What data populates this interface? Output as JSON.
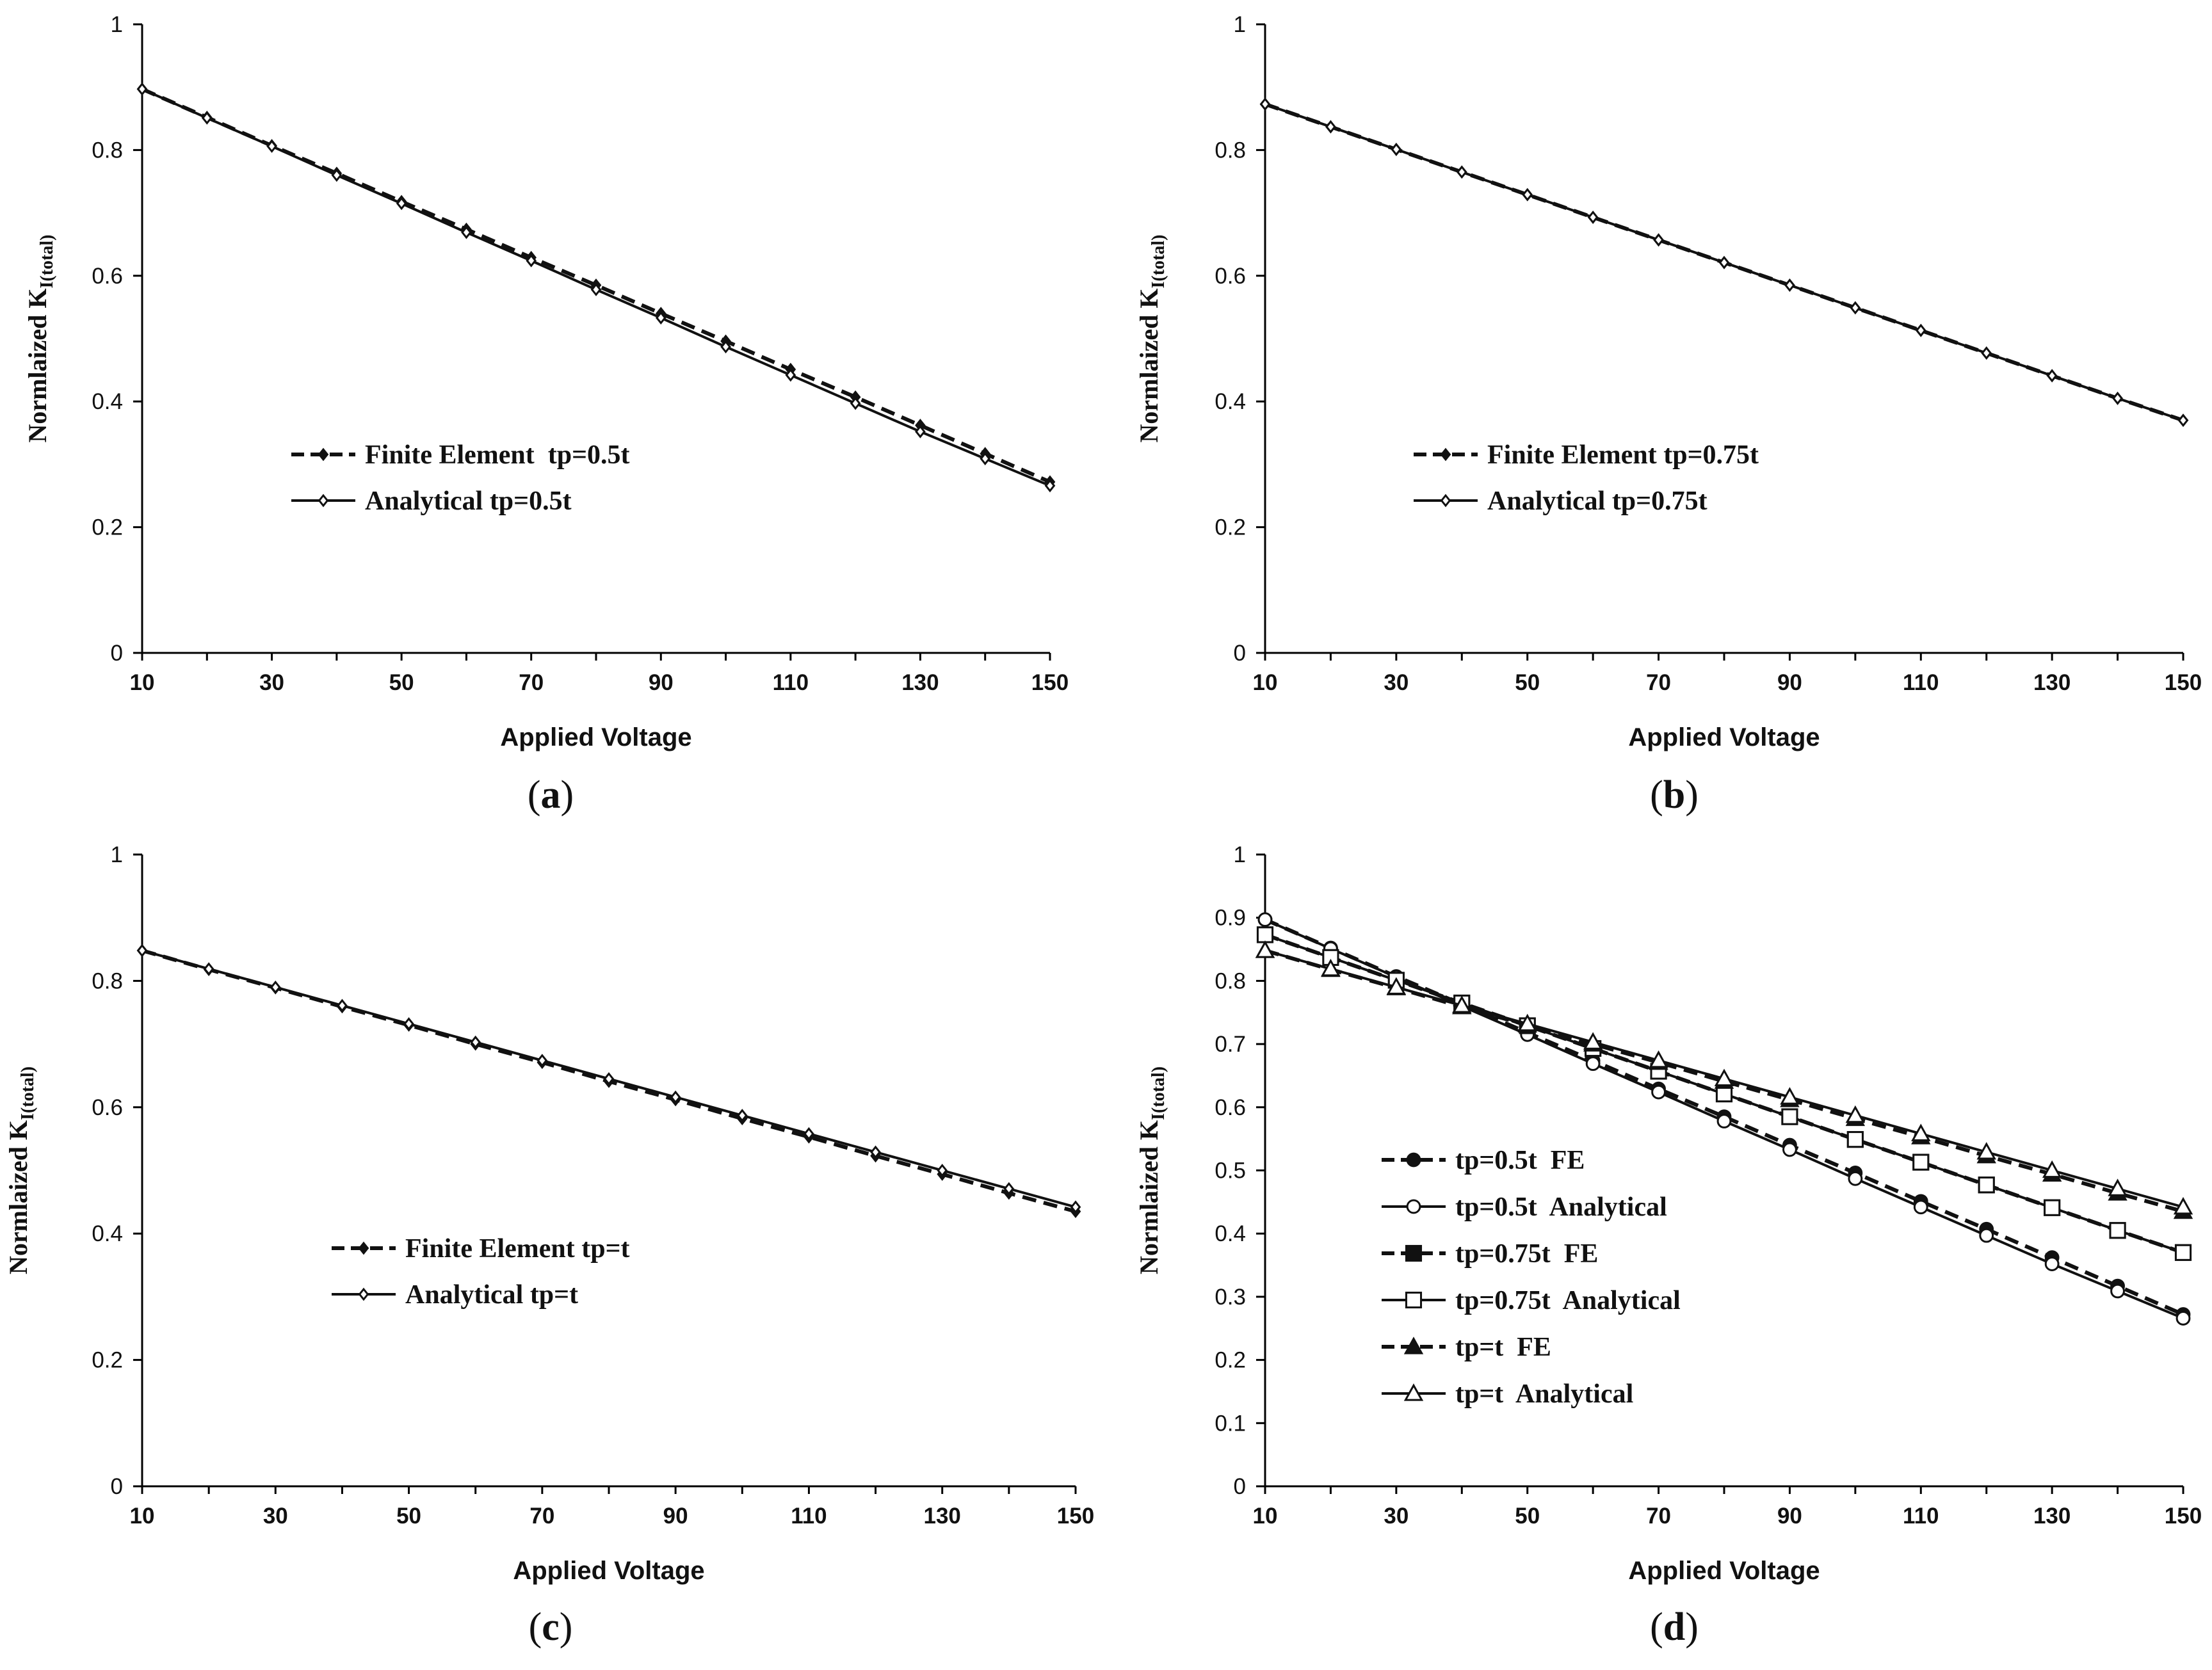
{
  "chart_data": [
    {
      "type": "line",
      "panel_label": "a",
      "xlabel": "Applied Voltage",
      "ylabel_main": "Normlaized  K",
      "ylabel_sub": "I(total)",
      "xlim": [
        10,
        150
      ],
      "ylim": [
        0,
        1
      ],
      "xticks": [
        10,
        30,
        50,
        70,
        90,
        110,
        130,
        150
      ],
      "yticks": [
        0,
        0.2,
        0.4,
        0.6,
        0.8,
        1
      ],
      "ytick_labels": [
        "0",
        "0.2",
        "0.4",
        "0.6",
        "0.8",
        "1"
      ],
      "legend": "center-left",
      "x": [
        10,
        20,
        30,
        40,
        50,
        60,
        70,
        80,
        90,
        100,
        110,
        120,
        130,
        140,
        150
      ],
      "series": [
        {
          "name": "Finite Element  tp=0.5t",
          "style": "dashed",
          "marker": "diamond-filled",
          "values": [
            0.897,
            0.852,
            0.807,
            0.763,
            0.718,
            0.674,
            0.629,
            0.585,
            0.54,
            0.496,
            0.451,
            0.407,
            0.362,
            0.317,
            0.272
          ]
        },
        {
          "name": "Analytical tp=0.5t",
          "style": "solid",
          "marker": "diamond-open",
          "values": [
            0.897,
            0.851,
            0.806,
            0.76,
            0.715,
            0.669,
            0.624,
            0.578,
            0.533,
            0.487,
            0.442,
            0.397,
            0.352,
            0.309,
            0.266
          ]
        }
      ]
    },
    {
      "type": "line",
      "panel_label": "b",
      "xlabel": "Applied Voltage",
      "ylabel_main": "Normlaized  K",
      "ylabel_sub": "I(total)",
      "xlim": [
        10,
        150
      ],
      "ylim": [
        0,
        1
      ],
      "xticks": [
        10,
        30,
        50,
        70,
        90,
        110,
        130,
        150
      ],
      "yticks": [
        0,
        0.2,
        0.4,
        0.6,
        0.8,
        1
      ],
      "ytick_labels": [
        "0",
        "0.2",
        "0.4",
        "0.6",
        "0.8",
        "1"
      ],
      "legend": "center-left",
      "x": [
        10,
        20,
        30,
        40,
        50,
        60,
        70,
        80,
        90,
        100,
        110,
        120,
        130,
        140,
        150
      ],
      "series": [
        {
          "name": "Finite Element tp=0.75t",
          "style": "dashed",
          "marker": "diamond-filled",
          "values": [
            0.873,
            0.837,
            0.801,
            0.765,
            0.729,
            0.693,
            0.657,
            0.621,
            0.585,
            0.549,
            0.513,
            0.477,
            0.441,
            0.405,
            0.37
          ]
        },
        {
          "name": "Analytical tp=0.75t",
          "style": "solid",
          "marker": "diamond-open",
          "values": [
            0.873,
            0.837,
            0.801,
            0.765,
            0.729,
            0.693,
            0.657,
            0.621,
            0.585,
            0.549,
            0.513,
            0.477,
            0.441,
            0.405,
            0.37
          ]
        }
      ]
    },
    {
      "type": "line",
      "panel_label": "c",
      "xlabel": "Applied Voltage",
      "ylabel_main": "Normlaized  K",
      "ylabel_sub": "I(total)",
      "xlim": [
        10,
        150
      ],
      "ylim": [
        0,
        1
      ],
      "xticks": [
        10,
        30,
        50,
        70,
        90,
        110,
        130,
        150
      ],
      "yticks": [
        0,
        0.2,
        0.4,
        0.6,
        0.8,
        1
      ],
      "ytick_labels": [
        "0",
        "0.2",
        "0.4",
        "0.6",
        "0.8",
        "1"
      ],
      "legend": "center-left",
      "x": [
        10,
        20,
        30,
        40,
        50,
        60,
        70,
        80,
        90,
        100,
        110,
        120,
        130,
        140,
        150
      ],
      "series": [
        {
          "name": "Finite Element tp=t",
          "style": "dashed",
          "marker": "diamond-filled",
          "values": [
            0.848,
            0.818,
            0.789,
            0.759,
            0.73,
            0.7,
            0.671,
            0.641,
            0.612,
            0.582,
            0.553,
            0.523,
            0.494,
            0.464,
            0.435
          ]
        },
        {
          "name": "Analytical tp=t",
          "style": "solid",
          "marker": "diamond-open",
          "values": [
            0.848,
            0.819,
            0.79,
            0.761,
            0.732,
            0.703,
            0.674,
            0.645,
            0.616,
            0.587,
            0.558,
            0.529,
            0.5,
            0.471,
            0.442
          ]
        }
      ]
    },
    {
      "type": "line",
      "panel_label": "d",
      "xlabel": "Applied Voltage",
      "ylabel_main": "Normlaized  K",
      "ylabel_sub": "I(total)",
      "xlim": [
        10,
        150
      ],
      "ylim": [
        0,
        1
      ],
      "xticks": [
        10,
        30,
        50,
        70,
        90,
        110,
        130,
        150
      ],
      "yticks": [
        0,
        0.1,
        0.2,
        0.3,
        0.4,
        0.5,
        0.6,
        0.7,
        0.8,
        0.9,
        1
      ],
      "ytick_labels": [
        "0",
        "0.1",
        "0.2",
        "0.3",
        "0.4",
        "0.5",
        "0.6",
        "0.7",
        "0.8",
        "0.9",
        "1"
      ],
      "legend": "center-left",
      "x": [
        10,
        20,
        30,
        40,
        50,
        60,
        70,
        80,
        90,
        100,
        110,
        120,
        130,
        140,
        150
      ],
      "series": [
        {
          "name": "tp=0.5t  FE",
          "style": "dashed",
          "marker": "circle-filled",
          "values": [
            0.897,
            0.852,
            0.807,
            0.763,
            0.718,
            0.674,
            0.629,
            0.585,
            0.54,
            0.496,
            0.451,
            0.407,
            0.362,
            0.317,
            0.272
          ]
        },
        {
          "name": "tp=0.5t  Analytical",
          "style": "solid",
          "marker": "circle-open",
          "values": [
            0.897,
            0.851,
            0.806,
            0.76,
            0.715,
            0.669,
            0.624,
            0.578,
            0.533,
            0.487,
            0.442,
            0.397,
            0.352,
            0.309,
            0.266
          ]
        },
        {
          "name": "tp=0.75t  FE",
          "style": "dashed",
          "marker": "square-filled",
          "values": [
            0.873,
            0.837,
            0.801,
            0.765,
            0.729,
            0.693,
            0.657,
            0.621,
            0.585,
            0.549,
            0.513,
            0.477,
            0.441,
            0.405,
            0.37
          ]
        },
        {
          "name": "tp=0.75t  Analytical",
          "style": "solid",
          "marker": "square-open",
          "values": [
            0.873,
            0.837,
            0.801,
            0.765,
            0.729,
            0.693,
            0.657,
            0.621,
            0.585,
            0.549,
            0.513,
            0.477,
            0.441,
            0.405,
            0.37
          ]
        },
        {
          "name": "tp=t  FE",
          "style": "dashed",
          "marker": "triangle-filled",
          "values": [
            0.848,
            0.818,
            0.789,
            0.759,
            0.73,
            0.7,
            0.671,
            0.641,
            0.612,
            0.582,
            0.553,
            0.523,
            0.494,
            0.464,
            0.435
          ]
        },
        {
          "name": "tp=t  Analytical",
          "style": "solid",
          "marker": "triangle-open",
          "values": [
            0.848,
            0.819,
            0.79,
            0.761,
            0.732,
            0.703,
            0.674,
            0.645,
            0.616,
            0.587,
            0.558,
            0.529,
            0.5,
            0.471,
            0.442
          ]
        }
      ]
    }
  ]
}
